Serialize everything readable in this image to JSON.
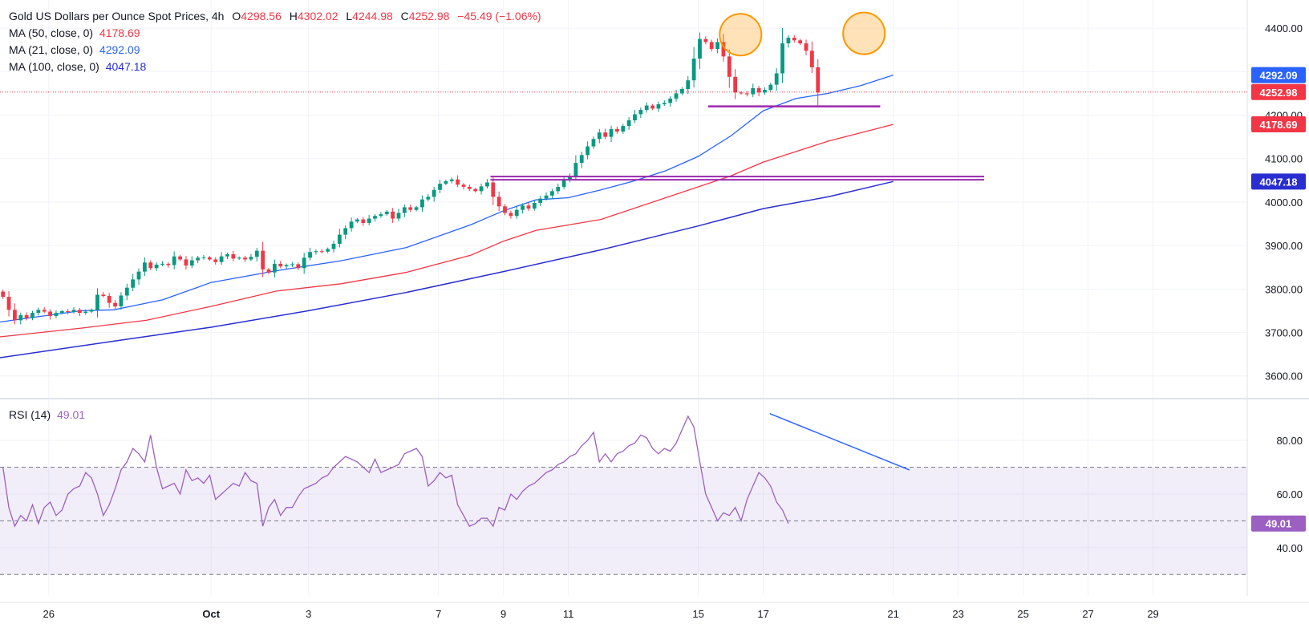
{
  "header": {
    "title": "Gold US Dollars per Ounce Spot Prices, 4h",
    "open_label": "O",
    "open": "4298.56",
    "high_label": "H",
    "high": "4302.02",
    "low_label": "L",
    "low": "4244.98",
    "close_label": "C",
    "close": "4252.98",
    "change": "−45.49 (−1.06%)"
  },
  "indicators": [
    {
      "label": "MA (50, close, 0)",
      "value": "4178.69",
      "color": "#f23645"
    },
    {
      "label": "MA (21, close, 0)",
      "value": "4292.09",
      "color": "#2962ff"
    },
    {
      "label": "MA (100, close, 0)",
      "value": "4047.18",
      "color": "#2a2ed0"
    }
  ],
  "rsi": {
    "label": "RSI (14)",
    "value": "49.01",
    "color": "#9c5fc2"
  },
  "price_tags": [
    {
      "value": "4292.09",
      "color": "#2962ff"
    },
    {
      "value": "4252.98",
      "color": "#f23645"
    },
    {
      "value": "4178.69",
      "color": "#f23645"
    },
    {
      "value": "4047.18",
      "color": "#2a2ed0"
    }
  ],
  "rsi_tag": {
    "value": "49.01",
    "color": "#9c5fc2"
  },
  "chart_data": {
    "type": "candlestick",
    "title": "Gold US Dollars per Ounce Spot Prices, 4h",
    "price_axis": {
      "ticks": [
        "3600.00",
        "3700.00",
        "3800.00",
        "3900.00",
        "4000.00",
        "4100.00",
        "4200.00",
        "4300.00",
        "4400.00"
      ],
      "range": [
        3570,
        4450
      ]
    },
    "rsi_axis": {
      "ticks": [
        "40.00",
        "60.00",
        "80.00"
      ],
      "range": [
        25,
        92
      ],
      "overbought": 70,
      "middle": 50,
      "oversold": 30
    },
    "x_axis": {
      "labels": [
        "26",
        "Oct",
        "3",
        "7",
        "9",
        "11",
        "15",
        "17",
        "21",
        "23",
        "25",
        "27",
        "29"
      ],
      "label_days": [
        26,
        31,
        34,
        38,
        40,
        42,
        46,
        48,
        52,
        54,
        56,
        58,
        60
      ],
      "day_range": [
        24.5,
        62.9
      ]
    },
    "first_day": 24.5,
    "candles_per_day": 5.5,
    "close": [
      3782,
      3752,
      3728,
      3740,
      3733,
      3745,
      3752,
      3748,
      3738,
      3745,
      3749,
      3747,
      3752,
      3745,
      3748,
      3752,
      3787,
      3784,
      3768,
      3760,
      3785,
      3803,
      3822,
      3840,
      3861,
      3848,
      3856,
      3858,
      3855,
      3875,
      3868,
      3854,
      3866,
      3872,
      3873,
      3868,
      3862,
      3875,
      3880,
      3870,
      3872,
      3868,
      3874,
      3888,
      3845,
      3838,
      3858,
      3852,
      3855,
      3857,
      3848,
      3872,
      3885,
      3887,
      3886,
      3892,
      3904,
      3925,
      3940,
      3955,
      3960,
      3952,
      3962,
      3968,
      3972,
      3978,
      3962,
      3975,
      3988,
      3982,
      3988,
      4006,
      4012,
      4028,
      4042,
      4048,
      4052,
      4040,
      4035,
      4030,
      4025,
      4036,
      4045,
      4012,
      3990,
      3975,
      3968,
      3982,
      3992,
      3985,
      3998,
      4008,
      4015,
      4025,
      4035,
      4052,
      4060,
      4090,
      4108,
      4128,
      4145,
      4160,
      4150,
      4168,
      4162,
      4175,
      4188,
      4202,
      4212,
      4222,
      4215,
      4225,
      4228,
      4238,
      4250,
      4260,
      4280,
      4330,
      4375,
      4368,
      4352,
      4368,
      4335,
      4288,
      4252,
      4250,
      4248,
      4262,
      4252,
      4258,
      4270,
      4296,
      4365,
      4378,
      4372,
      4365,
      4348,
      4310,
      4252
    ],
    "rsi": [
      70,
      55,
      48,
      52,
      50,
      56,
      49,
      55,
      57,
      52,
      54,
      60,
      62,
      63,
      68,
      66,
      60,
      52,
      56,
      62,
      69,
      72,
      77,
      75,
      72,
      82,
      70,
      62,
      63,
      64,
      60,
      69,
      65,
      66,
      64,
      67,
      58,
      60,
      62,
      64,
      63,
      68,
      65,
      64,
      48,
      55,
      58,
      52,
      55,
      55,
      59,
      62,
      63,
      64,
      66,
      67,
      70,
      72,
      74,
      73,
      72,
      70,
      68,
      73,
      68,
      69,
      70,
      71,
      75,
      76,
      77,
      74,
      63,
      65,
      68,
      66,
      67,
      56,
      52,
      48,
      49,
      51,
      51,
      48,
      55,
      54,
      60,
      58,
      61,
      63,
      64,
      66,
      68,
      69,
      71,
      72,
      74,
      75,
      78,
      80,
      83,
      72,
      75,
      72,
      75,
      76,
      78,
      79,
      82,
      81,
      77,
      75,
      77,
      76,
      79,
      84,
      89,
      85,
      72,
      60,
      55,
      50,
      53,
      52,
      55,
      50,
      58,
      63,
      68,
      66,
      63,
      57,
      54,
      49.01
    ],
    "ma21": [
      {
        "d": 24.5,
        "v": 3724
      },
      {
        "d": 27,
        "v": 3750
      },
      {
        "d": 28,
        "v": 3752
      },
      {
        "d": 29.5,
        "v": 3775
      },
      {
        "d": 31,
        "v": 3815
      },
      {
        "d": 33,
        "v": 3842
      },
      {
        "d": 35,
        "v": 3865
      },
      {
        "d": 37,
        "v": 3895
      },
      {
        "d": 39,
        "v": 3948
      },
      {
        "d": 40,
        "v": 3980
      },
      {
        "d": 41,
        "v": 4005
      },
      {
        "d": 42,
        "v": 4010
      },
      {
        "d": 43,
        "v": 4028
      },
      {
        "d": 44,
        "v": 4048
      },
      {
        "d": 45,
        "v": 4072
      },
      {
        "d": 46,
        "v": 4105
      },
      {
        "d": 47,
        "v": 4152
      },
      {
        "d": 48,
        "v": 4210
      },
      {
        "d": 49,
        "v": 4238
      },
      {
        "d": 50,
        "v": 4250
      },
      {
        "d": 51,
        "v": 4268
      },
      {
        "d": 52,
        "v": 4292.09
      }
    ],
    "ma50": [
      {
        "d": 24.5,
        "v": 3690
      },
      {
        "d": 27,
        "v": 3710
      },
      {
        "d": 29,
        "v": 3728
      },
      {
        "d": 31,
        "v": 3760
      },
      {
        "d": 33,
        "v": 3795
      },
      {
        "d": 35,
        "v": 3812
      },
      {
        "d": 37,
        "v": 3838
      },
      {
        "d": 39,
        "v": 3878
      },
      {
        "d": 40,
        "v": 3910
      },
      {
        "d": 41,
        "v": 3935
      },
      {
        "d": 43,
        "v": 3960
      },
      {
        "d": 45,
        "v": 4010
      },
      {
        "d": 47,
        "v": 4060
      },
      {
        "d": 48,
        "v": 4092
      },
      {
        "d": 50,
        "v": 4140
      },
      {
        "d": 52,
        "v": 4178.69
      }
    ],
    "ma100": [
      {
        "d": 24.5,
        "v": 3642
      },
      {
        "d": 28,
        "v": 3680
      },
      {
        "d": 31,
        "v": 3712
      },
      {
        "d": 34,
        "v": 3750
      },
      {
        "d": 37,
        "v": 3792
      },
      {
        "d": 40,
        "v": 3840
      },
      {
        "d": 43,
        "v": 3890
      },
      {
        "d": 46,
        "v": 3945
      },
      {
        "d": 48,
        "v": 3985
      },
      {
        "d": 50,
        "v": 4012
      },
      {
        "d": 52,
        "v": 4047.18
      }
    ],
    "annotations": {
      "support_line_upper": {
        "d1": 46.3,
        "d2": 51.6,
        "v": 4220
      },
      "support_line_lower": {
        "d1": 39.6,
        "d2": 54.8,
        "v": 4055
      },
      "peak_circles": [
        {
          "d": 47.3,
          "v": 4385
        },
        {
          "d": 51.1,
          "v": 4388
        }
      ],
      "rsi_divergence": {
        "d1": 48.2,
        "v1": 90,
        "d2": 52.5,
        "v2": 69
      }
    }
  }
}
